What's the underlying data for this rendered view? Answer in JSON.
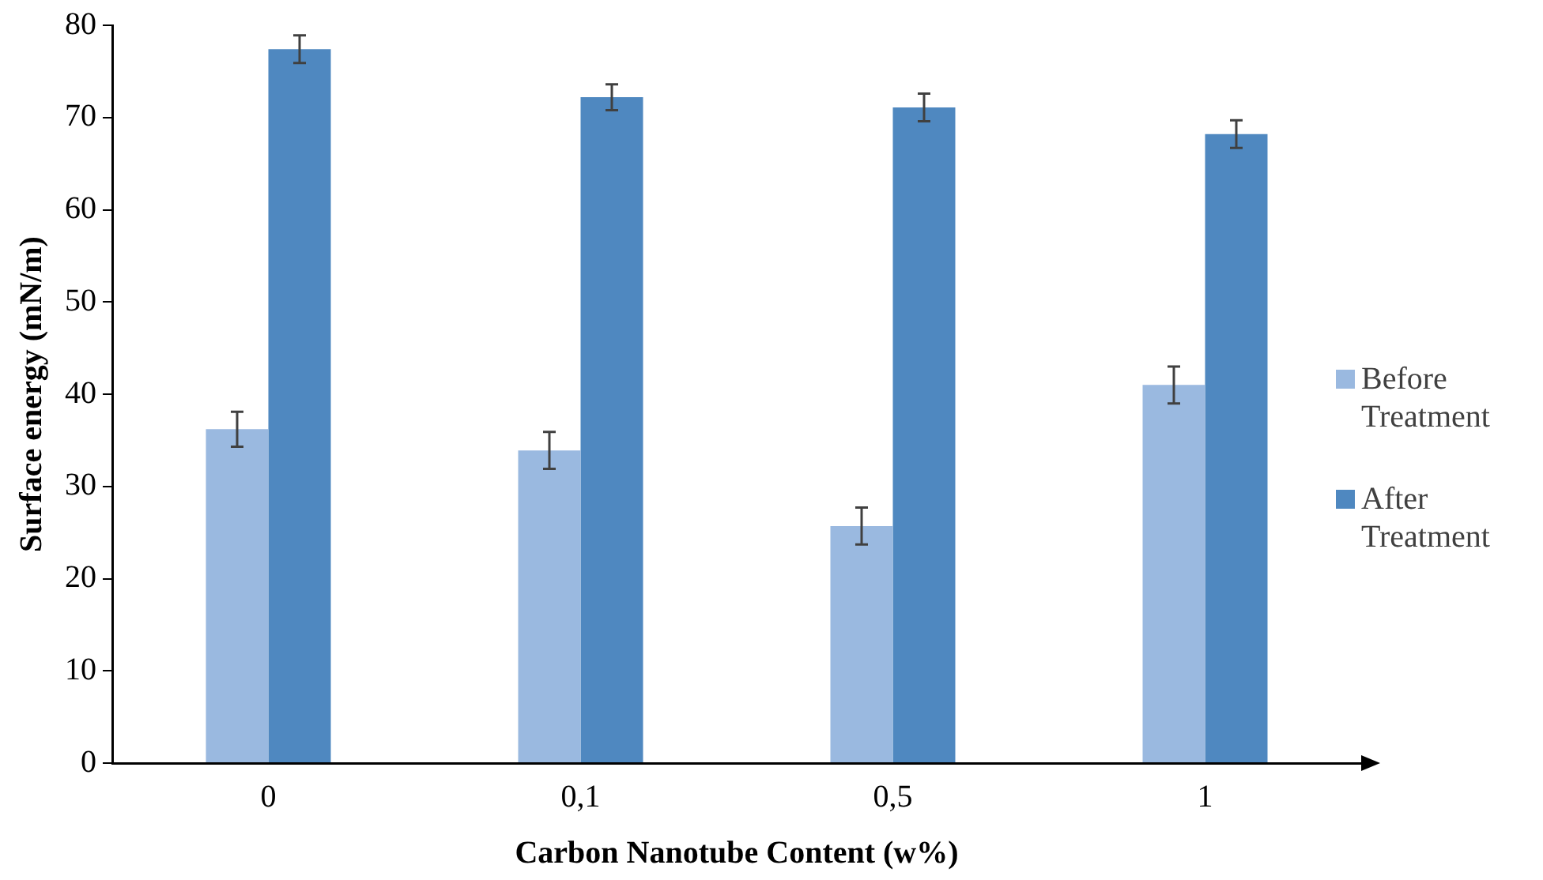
{
  "chart_data": {
    "type": "bar",
    "xlabel": "Carbon Nanotube Content (w%)",
    "ylabel": "Surface energy (mN/m)",
    "categories": [
      "0",
      "0,1",
      "0,5",
      "1"
    ],
    "series": [
      {
        "name": "Before Treatment",
        "color": "#9ab9e0",
        "values": [
          36.2,
          33.9,
          25.7,
          41.0
        ],
        "errors": [
          1.9,
          2.0,
          2.0,
          2.0
        ]
      },
      {
        "name": "After Treatment",
        "color": "#4f88c0",
        "values": [
          77.4,
          72.2,
          71.1,
          68.2
        ],
        "errors": [
          1.5,
          1.4,
          1.5,
          1.5
        ]
      }
    ],
    "ylim": [
      0,
      80
    ],
    "yticks": [
      0,
      10,
      20,
      30,
      40,
      50,
      60,
      70,
      80
    ],
    "grid": false,
    "legend": "right"
  }
}
